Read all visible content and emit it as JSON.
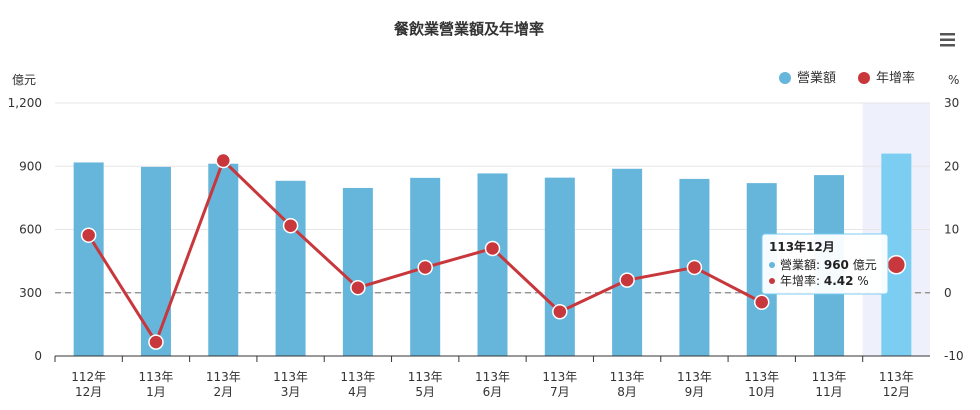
{
  "chart_data": {
    "type": "bar+line",
    "title": "餐飲業營業額及年增率",
    "y_left_unit": "億元",
    "y_right_unit": "%",
    "y_left_range": [
      0,
      1200
    ],
    "y_left_ticks": [
      "0",
      "300",
      "600",
      "900",
      "1,200"
    ],
    "y_right_range": [
      -10,
      30
    ],
    "y_right_ticks": [
      "-10",
      "0",
      "10",
      "20",
      "30"
    ],
    "categories": [
      [
        "112年",
        "12月"
      ],
      [
        "113年",
        "1月"
      ],
      [
        "113年",
        "2月"
      ],
      [
        "113年",
        "3月"
      ],
      [
        "113年",
        "4月"
      ],
      [
        "113年",
        "5月"
      ],
      [
        "113年",
        "6月"
      ],
      [
        "113年",
        "7月"
      ],
      [
        "113年",
        "8月"
      ],
      [
        "113年",
        "9月"
      ],
      [
        "113年",
        "10月"
      ],
      [
        "113年",
        "11月"
      ],
      [
        "113年",
        "12月"
      ]
    ],
    "series": [
      {
        "name": "營業額",
        "type": "bar",
        "axis": "left",
        "color": "#66b5db",
        "values": [
          918,
          897,
          912,
          831,
          797,
          845,
          866,
          846,
          888,
          840,
          820,
          858,
          960
        ]
      },
      {
        "name": "年增率",
        "type": "line",
        "axis": "right",
        "color": "#c8373c",
        "values": [
          9.1,
          -7.8,
          20.9,
          10.6,
          0.8,
          4.0,
          7.0,
          -3.0,
          2.0,
          4.0,
          -1.5,
          null,
          4.42
        ]
      }
    ],
    "highlight_color": "#7ccdf2",
    "legend_position": "top-right",
    "grid": true,
    "reference_line_right": 0,
    "highlighted_index": 12,
    "tooltip": {
      "title": "113年12月",
      "rows": [
        {
          "label": "營業額: ",
          "value": "960",
          "unit": " 億元",
          "color": "#66b5db"
        },
        {
          "label": "年增率: ",
          "value": "4.42",
          "unit": " %",
          "color": "#c8373c"
        }
      ]
    }
  },
  "menu_icon": "hamburger-icon"
}
